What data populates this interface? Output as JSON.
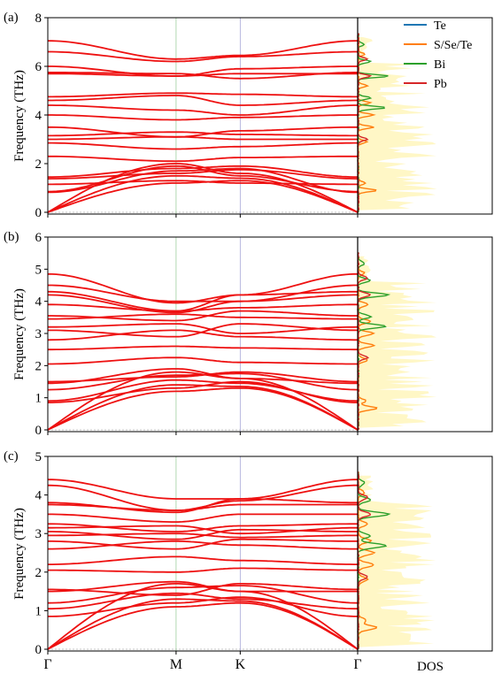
{
  "chart_data": [
    {
      "type": "line",
      "panel_label": "(a)",
      "ylabel": "Frequency (THz)",
      "ylim": [
        0,
        8
      ],
      "yticks": [
        "0",
        "2",
        "4",
        "6",
        "8"
      ],
      "high_symmetry_points": [
        "Γ",
        "M",
        "K",
        "Γ"
      ],
      "x": [
        0,
        0.414,
        0.621,
        1.0
      ],
      "series": [
        {
          "values": [
            0,
            1.2,
            1.3,
            0
          ]
        },
        {
          "values": [
            0,
            1.5,
            1.4,
            0
          ]
        },
        {
          "values": [
            0,
            2.0,
            1.6,
            0
          ]
        },
        {
          "values": [
            0.82,
            1.7,
            1.8,
            0.82
          ]
        },
        {
          "values": [
            0.85,
            1.9,
            1.5,
            0.85
          ]
        },
        {
          "values": [
            1.15,
            1.3,
            1.2,
            1.15
          ]
        },
        {
          "values": [
            1.38,
            1.6,
            1.75,
            1.38
          ]
        },
        {
          "values": [
            1.45,
            1.8,
            1.9,
            1.45
          ]
        },
        {
          "values": [
            2.3,
            2.1,
            2.25,
            2.3
          ]
        },
        {
          "values": [
            2.85,
            2.6,
            2.7,
            2.85
          ]
        },
        {
          "values": [
            3.0,
            3.1,
            3.0,
            3.0
          ]
        },
        {
          "values": [
            3.15,
            3.3,
            3.2,
            3.15
          ]
        },
        {
          "values": [
            3.5,
            3.1,
            3.35,
            3.5
          ]
        },
        {
          "values": [
            4.0,
            3.8,
            3.9,
            4.0
          ]
        },
        {
          "values": [
            4.4,
            4.2,
            4.0,
            4.4
          ]
        },
        {
          "values": [
            4.6,
            4.8,
            4.4,
            4.6
          ]
        },
        {
          "values": [
            4.75,
            4.9,
            4.85,
            4.75
          ]
        },
        {
          "values": [
            5.7,
            5.6,
            5.7,
            5.7
          ]
        },
        {
          "values": [
            5.75,
            5.7,
            5.5,
            5.75
          ]
        },
        {
          "values": [
            6.0,
            5.6,
            5.9,
            6.0
          ]
        },
        {
          "values": [
            6.6,
            6.2,
            6.4,
            6.6
          ]
        },
        {
          "values": [
            7.05,
            6.3,
            6.45,
            7.05
          ]
        }
      ]
    },
    {
      "type": "line",
      "panel_label": "(b)",
      "ylabel": "Frequency (THz)",
      "ylim": [
        0,
        6
      ],
      "yticks": [
        "0",
        "1",
        "2",
        "3",
        "4",
        "5",
        "6"
      ],
      "high_symmetry_points": [
        "Γ",
        "M",
        "K",
        "Γ"
      ],
      "x": [
        0,
        0.414,
        0.621,
        1.0
      ],
      "series": [
        {
          "values": [
            0,
            1.2,
            1.3,
            0
          ]
        },
        {
          "values": [
            0,
            1.4,
            1.35,
            0
          ]
        },
        {
          "values": [
            0,
            1.8,
            1.6,
            0
          ]
        },
        {
          "values": [
            0.85,
            1.3,
            1.5,
            0.85
          ]
        },
        {
          "values": [
            0.9,
            1.55,
            1.45,
            0.9
          ]
        },
        {
          "values": [
            1.25,
            1.7,
            1.75,
            1.25
          ]
        },
        {
          "values": [
            1.45,
            1.9,
            1.6,
            1.45
          ]
        },
        {
          "values": [
            1.5,
            1.65,
            1.8,
            1.5
          ]
        },
        {
          "values": [
            2.05,
            2.25,
            2.1,
            2.05
          ]
        },
        {
          "values": [
            2.5,
            2.6,
            2.55,
            2.5
          ]
        },
        {
          "values": [
            2.8,
            3.1,
            2.9,
            2.8
          ]
        },
        {
          "values": [
            3.1,
            2.9,
            3.3,
            3.1
          ]
        },
        {
          "values": [
            3.2,
            3.3,
            3.0,
            3.2
          ]
        },
        {
          "values": [
            3.45,
            3.6,
            3.5,
            3.45
          ]
        },
        {
          "values": [
            3.55,
            3.4,
            3.7,
            3.55
          ]
        },
        {
          "values": [
            3.9,
            3.7,
            3.8,
            3.9
          ]
        },
        {
          "values": [
            4.2,
            3.65,
            4.0,
            4.2
          ]
        },
        {
          "values": [
            4.3,
            3.7,
            4.2,
            4.3
          ]
        },
        {
          "values": [
            4.5,
            4.0,
            4.0,
            4.5
          ]
        },
        {
          "values": [
            4.85,
            3.95,
            4.2,
            4.85
          ]
        }
      ]
    },
    {
      "type": "line",
      "panel_label": "(c)",
      "ylabel": "Frequency (THz)",
      "ylim": [
        0,
        5
      ],
      "yticks": [
        "0",
        "1",
        "2",
        "3",
        "4",
        "5"
      ],
      "high_symmetry_points": [
        "Γ",
        "M",
        "K",
        "Γ"
      ],
      "x": [
        0,
        0.414,
        0.621,
        1.0
      ],
      "series": [
        {
          "values": [
            0,
            1.1,
            1.2,
            0
          ]
        },
        {
          "values": [
            0,
            1.3,
            1.25,
            0
          ]
        },
        {
          "values": [
            0,
            1.7,
            1.5,
            0
          ]
        },
        {
          "values": [
            0.85,
            1.2,
            1.35,
            0.85
          ]
        },
        {
          "values": [
            1.05,
            1.45,
            1.3,
            1.05
          ]
        },
        {
          "values": [
            1.2,
            1.6,
            1.65,
            1.2
          ]
        },
        {
          "values": [
            1.5,
            1.75,
            1.5,
            1.5
          ]
        },
        {
          "values": [
            1.55,
            1.4,
            1.7,
            1.55
          ]
        },
        {
          "values": [
            2.05,
            2.0,
            2.1,
            2.05
          ]
        },
        {
          "values": [
            2.2,
            2.4,
            2.3,
            2.2
          ]
        },
        {
          "values": [
            2.6,
            2.8,
            2.7,
            2.6
          ]
        },
        {
          "values": [
            2.8,
            2.6,
            2.85,
            2.8
          ]
        },
        {
          "values": [
            2.95,
            3.0,
            2.9,
            2.95
          ]
        },
        {
          "values": [
            3.05,
            2.85,
            3.1,
            3.05
          ]
        },
        {
          "values": [
            3.15,
            3.2,
            3.0,
            3.15
          ]
        },
        {
          "values": [
            3.25,
            3.05,
            3.2,
            3.25
          ]
        },
        {
          "values": [
            3.5,
            3.3,
            3.5,
            3.5
          ]
        },
        {
          "values": [
            3.75,
            3.6,
            3.75,
            3.75
          ]
        },
        {
          "values": [
            3.8,
            3.55,
            3.9,
            3.8
          ]
        },
        {
          "values": [
            4.25,
            3.6,
            3.85,
            4.25
          ]
        },
        {
          "values": [
            4.4,
            3.9,
            3.9,
            4.4
          ]
        }
      ]
    }
  ],
  "legend": [
    {
      "name": "Te",
      "color": "#1f77b4"
    },
    {
      "name": "S/Se/Te",
      "color": "#ff7f0e"
    },
    {
      "name": "Bi",
      "color": "#2ca02c"
    },
    {
      "name": "Pb",
      "color": "#d62728"
    }
  ],
  "band_color": "#ee1111",
  "dos_fill_color": "#fff6c0",
  "dos_xlabel": "DOS",
  "dos_peaks": [
    {
      "name": "S/Se/Te",
      "values": [
        [
          0.9,
          0.6
        ],
        [
          1.2,
          0.25
        ],
        [
          2.9,
          0.3
        ],
        [
          3.5,
          0.5
        ],
        [
          4.0,
          0.5
        ],
        [
          4.5,
          0.4
        ],
        [
          5.2,
          0.3
        ],
        [
          6.5,
          0.2
        ]
      ]
    },
    {
      "name": "Bi",
      "values": [
        [
          4.3,
          0.9
        ],
        [
          4.7,
          0.4
        ],
        [
          5.6,
          1.0
        ],
        [
          6.2,
          0.4
        ],
        [
          6.9,
          0.2
        ]
      ]
    },
    {
      "name": "Pb",
      "values": [
        [
          3.0,
          0.3
        ],
        [
          5.6,
          0.4
        ],
        [
          6.3,
          0.3
        ]
      ]
    }
  ]
}
